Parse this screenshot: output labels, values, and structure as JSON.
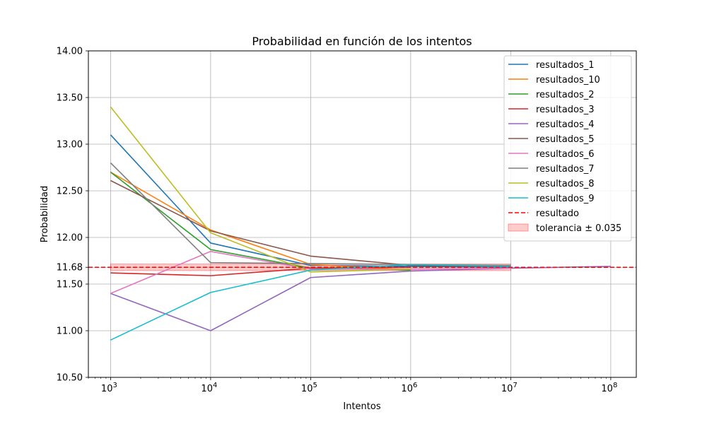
{
  "chart_data": {
    "type": "line",
    "title": "Probabilidad en función de los intentos",
    "xlabel": "Intentos",
    "ylabel": "Probabilidad",
    "xscale": "log",
    "xlim": [
      600,
      180000000
    ],
    "ylim": [
      10.5,
      14.0
    ],
    "xticks": [
      1000,
      10000,
      100000,
      1000000,
      10000000,
      100000000
    ],
    "xtick_labels": [
      {
        "base": "10",
        "exp": "3"
      },
      {
        "base": "10",
        "exp": "4"
      },
      {
        "base": "10",
        "exp": "5"
      },
      {
        "base": "10",
        "exp": "6"
      },
      {
        "base": "10",
        "exp": "7"
      },
      {
        "base": "10",
        "exp": "8"
      }
    ],
    "yticks": [
      10.5,
      11.0,
      11.5,
      11.68,
      12.0,
      12.5,
      13.0,
      13.5,
      14.0
    ],
    "ytick_labels": [
      "10.50",
      "11.00",
      "11.50",
      "11.68",
      "12.00",
      "12.50",
      "13.00",
      "13.50",
      "14.00"
    ],
    "grid": true,
    "legend_position": "top-right",
    "series": [
      {
        "name": "resultados_1",
        "color": "#1f77b4",
        "x": [
          1000,
          10000,
          100000,
          1000000,
          10000000
        ],
        "y": [
          13.1,
          11.94,
          11.7,
          11.69,
          11.68
        ]
      },
      {
        "name": "resultados_10",
        "color": "#ff7f0e",
        "x": [
          1000,
          10000,
          100000,
          1000000
        ],
        "y": [
          12.7,
          12.08,
          11.71,
          11.65
        ]
      },
      {
        "name": "resultados_2",
        "color": "#2ca02c",
        "x": [
          1000,
          10000,
          100000,
          1000000
        ],
        "y": [
          12.7,
          11.87,
          11.67,
          11.65
        ]
      },
      {
        "name": "resultados_3",
        "color": "#d62728",
        "x": [
          1000,
          10000,
          100000,
          1000000
        ],
        "y": [
          11.62,
          11.59,
          11.67,
          11.68
        ]
      },
      {
        "name": "resultados_4",
        "color": "#9467bd",
        "x": [
          1000,
          10000,
          100000,
          1000000,
          10000000,
          100000000
        ],
        "y": [
          11.4,
          11.0,
          11.57,
          11.64,
          11.67,
          11.69
        ]
      },
      {
        "name": "resultados_5",
        "color": "#8c564b",
        "x": [
          1000,
          10000,
          100000,
          1000000,
          10000000
        ],
        "y": [
          12.61,
          12.07,
          11.8,
          11.7,
          11.69
        ]
      },
      {
        "name": "resultados_6",
        "color": "#e377c2",
        "x": [
          1000,
          10000,
          100000,
          1000000,
          10000000
        ],
        "y": [
          11.4,
          11.85,
          11.66,
          11.66,
          11.67
        ]
      },
      {
        "name": "resultados_7",
        "color": "#7f7f7f",
        "x": [
          1000,
          10000,
          100000,
          1000000,
          10000000
        ],
        "y": [
          12.8,
          11.73,
          11.72,
          11.71,
          11.7
        ]
      },
      {
        "name": "resultados_8",
        "color": "#bcbd22",
        "x": [
          1000,
          10000,
          100000,
          1000000
        ],
        "y": [
          13.4,
          12.05,
          11.63,
          11.66
        ]
      },
      {
        "name": "resultados_9",
        "color": "#17becf",
        "x": [
          1000,
          10000,
          100000,
          1000000,
          10000000
        ],
        "y": [
          10.9,
          11.41,
          11.65,
          11.71,
          11.69
        ]
      }
    ],
    "reference_line": {
      "name": "resultado",
      "value": 11.68,
      "color": "#ff0000",
      "style": "dashed"
    },
    "tolerance_band": {
      "name": "tolerancia ± 0.035",
      "center": 11.68,
      "half_width": 0.035,
      "x_range": [
        1000,
        10000000
      ],
      "color": "#ff0000"
    }
  }
}
